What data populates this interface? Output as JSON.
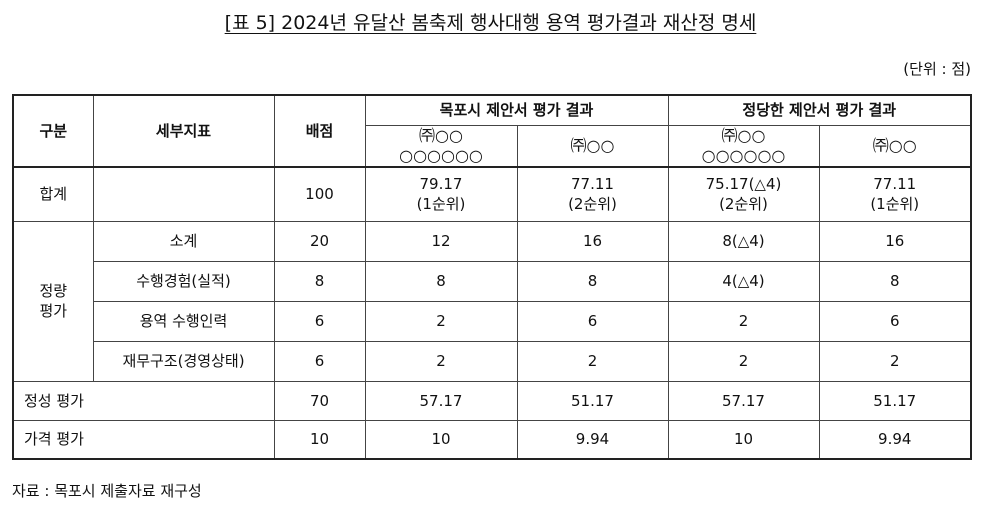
{
  "title": "[표 5] 2024년 유달산 봄축제 행사대행 용역 평가결과 재산정 명세",
  "unit": "(단위 : 점)",
  "table": {
    "header": {
      "category": "구분",
      "indicator": "세부지표",
      "score": "배점",
      "groups": [
        "목포시 제안서 평가 결과",
        "정당한 제안서 평가 결과"
      ],
      "companies": [
        [
          "㈜○○",
          "○○○○○○"
        ],
        [
          "㈜○○"
        ],
        [
          "㈜○○",
          "○○○○○○"
        ],
        [
          "㈜○○"
        ]
      ]
    },
    "total": {
      "label": "합계",
      "score": "100",
      "values": [
        [
          "79.17",
          "(1순위)"
        ],
        [
          "77.11",
          "(2순위)"
        ],
        [
          "75.17(△4)",
          "(2순위)"
        ],
        [
          "77.11",
          "(1순위)"
        ]
      ]
    },
    "quantitative": {
      "label": [
        "정량",
        "평가"
      ],
      "rows": [
        {
          "indicator": "소계",
          "score": "20",
          "values": [
            "12",
            "16",
            "8(△4)",
            "16"
          ]
        },
        {
          "indicator": "수행경험(실적)",
          "score": "8",
          "values": [
            "8",
            "8",
            "4(△4)",
            "8"
          ]
        },
        {
          "indicator": "용역 수행인력",
          "score": "6",
          "values": [
            "2",
            "6",
            "2",
            "6"
          ]
        },
        {
          "indicator": "재무구조(경영상태)",
          "score": "6",
          "values": [
            "2",
            "2",
            "2",
            "2"
          ]
        }
      ]
    },
    "others": [
      {
        "label": "정성 평가",
        "score": "70",
        "values": [
          "57.17",
          "51.17",
          "57.17",
          "51.17"
        ]
      },
      {
        "label": "가격 평가",
        "score": "10",
        "values": [
          "10",
          "9.94",
          "10",
          "9.94"
        ]
      }
    ]
  },
  "source": "자료 : 목포시 제출자료 재구성"
}
